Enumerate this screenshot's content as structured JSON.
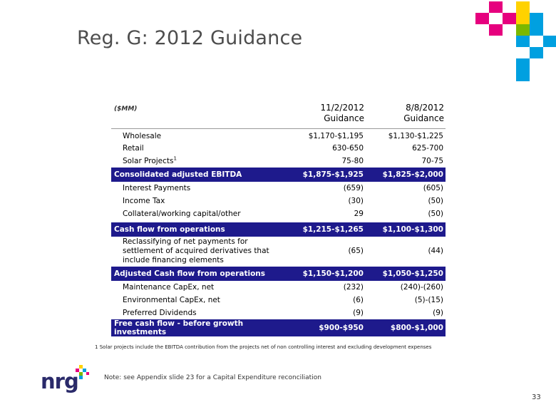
{
  "title": "Reg. G: 2012 Guidance",
  "table": {
    "unit_label": "($MM)",
    "col1_line1": "11/2/2012",
    "col1_line2": "Guidance",
    "col2_line1": "8/8/2012",
    "col2_line2": "Guidance",
    "rows": [
      {
        "label": "Wholesale",
        "v1": "$1,170-$1,195",
        "v2": "$1,130-$1,225"
      },
      {
        "label": "Retail",
        "v1": "630-650",
        "v2": "625-700"
      },
      {
        "label": "Solar Projects",
        "sup": "1",
        "v1": "75-80",
        "v2": "70-75"
      },
      {
        "label": "Consolidated adjusted EBITDA",
        "v1": "$1,875-$1,925",
        "v2": "$1,825-$2,000"
      },
      {
        "label": "Interest Payments",
        "v1": "(659)",
        "v2": "(605)"
      },
      {
        "label": "Income Tax",
        "v1": "(30)",
        "v2": "(50)"
      },
      {
        "label": "Collateral/working capital/other",
        "v1": "29",
        "v2": "(50)"
      },
      {
        "label": "Cash flow from operations",
        "v1": "$1,215-$1,265",
        "v2": "$1,100-$1,300"
      },
      {
        "label": "Reclassifying of net payments for settlement of acquired derivatives that include financing elements",
        "v1": "(65)",
        "v2": "(44)"
      },
      {
        "label": "Adjusted Cash flow from operations",
        "v1": "$1,150-$1,200",
        "v2": "$1,050-$1,250"
      },
      {
        "label": "Maintenance CapEx, net",
        "v1": "(232)",
        "v2": "(240)-(260)"
      },
      {
        "label": "Environmental CapEx, net",
        "v1": "(6)",
        "v2": "(5)-(15)"
      },
      {
        "label": "Preferred Dividends",
        "v1": "(9)",
        "v2": "(9)"
      },
      {
        "label": "Free cash flow - before growth investments",
        "v1": "$900-$950",
        "v2": "$800-$1,000"
      }
    ]
  },
  "footnote_mark": "1",
  "footnote": "Solar projects include the EBITDA contribution from the projects  net of non controlling interest and excluding development expenses",
  "note": "Note: see Appendix slide 23 for a Capital Expenditure reconciliation",
  "page_number": "33",
  "logo": {
    "text": "nrg",
    "tm": "™"
  },
  "colors": {
    "total_row_bg": "#1e1a8c",
    "magenta": "#e6007e",
    "cyan": "#00a0e0",
    "green": "#7ab800",
    "yellow": "#ffd200",
    "navy": "#2a2a6a"
  }
}
